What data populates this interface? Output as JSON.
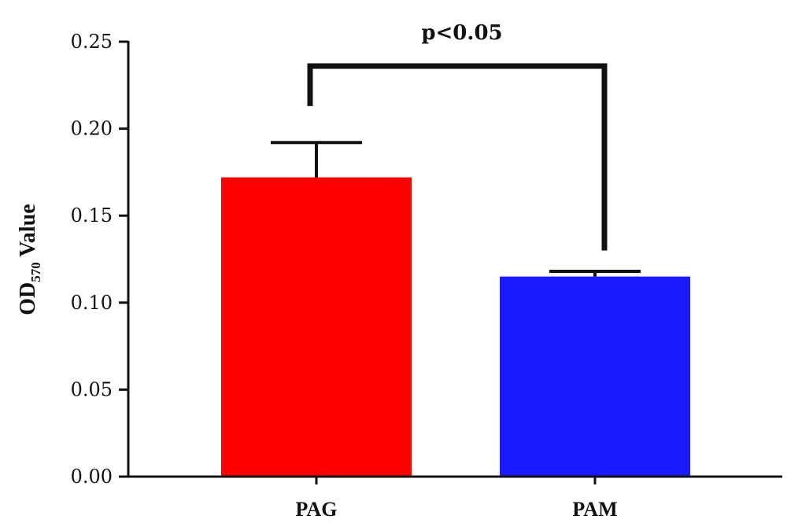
{
  "chart_data": {
    "type": "bar",
    "categories": [
      "PAG",
      "PAM"
    ],
    "values": [
      0.172,
      0.115
    ],
    "errors": [
      0.02,
      0.003
    ],
    "colors": [
      "#ff0000",
      "#1a1aff"
    ],
    "ylabel_main": "OD",
    "ylabel_sub": "570",
    "ylabel_tail": " Value",
    "ylim": [
      0,
      0.25
    ],
    "yticks": [
      "0.00",
      "0.05",
      "0.10",
      "0.15",
      "0.20",
      "0.25"
    ],
    "annotation": "p<0.05",
    "significance": {
      "left_top": 0.213,
      "right_top": 0.13,
      "bracket_level": 0.236
    }
  }
}
